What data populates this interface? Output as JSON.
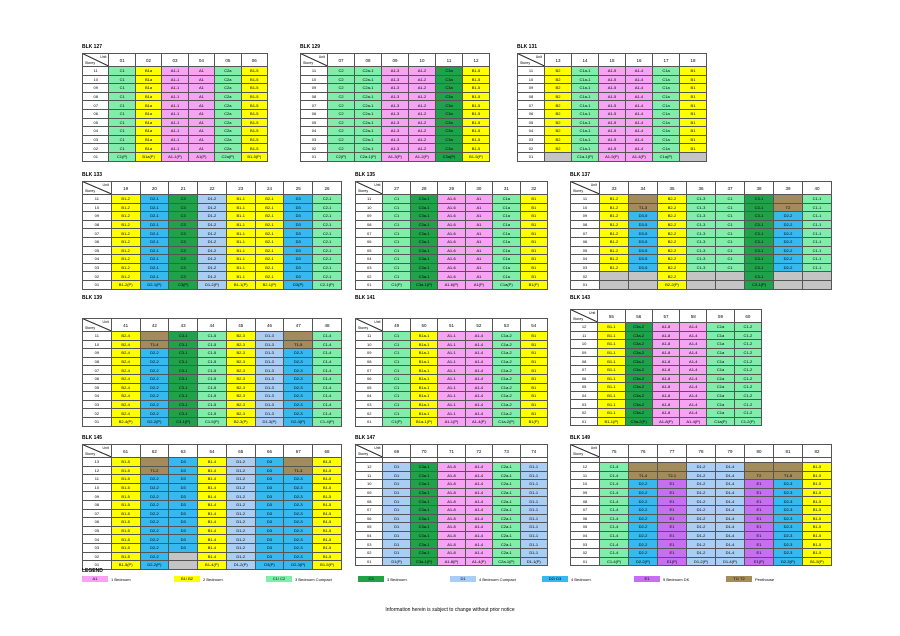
{
  "header_labels": {
    "unit": "Unit",
    "storey": "Storey"
  },
  "colors": {
    "a": "#f5a3f2",
    "b": "#ffff00",
    "c": "#80eeaa",
    "c3": "#1fa24a",
    "d1": "#a9cdf3",
    "d2": "#35b9ef",
    "e": "#c66ff0",
    "ph": "#a38b5b",
    "x": "#c4c4c4"
  },
  "blocks": [
    {
      "title": "BLK 127",
      "floors": [
        "11",
        "10",
        "09",
        "08",
        "07",
        "06",
        "05",
        "04",
        "03",
        "02",
        "01"
      ],
      "columns": [
        {
          "unit": "01",
          "type": "c",
          "label": "C1",
          "ground": "C1(P)"
        },
        {
          "unit": "02",
          "type": "b",
          "label": "B1a",
          "ground": "B1a(P)"
        },
        {
          "unit": "03",
          "type": "a",
          "label": "A1-1",
          "ground": "A1-1(P)"
        },
        {
          "unit": "04",
          "type": "a",
          "label": "A1",
          "ground": "A1(P)"
        },
        {
          "unit": "05",
          "type": "c",
          "label": "C2a",
          "ground": "C2a(P)"
        },
        {
          "unit": "06",
          "type": "b",
          "label": "B1-5",
          "ground": "B1-5(P)"
        }
      ]
    },
    {
      "title": "BLK 129",
      "floors": [
        "11",
        "10",
        "09",
        "08",
        "07",
        "06",
        "05",
        "04",
        "03",
        "02",
        "01"
      ],
      "columns": [
        {
          "unit": "07",
          "type": "c",
          "label": "C2",
          "ground": "C2(P)"
        },
        {
          "unit": "08",
          "type": "c",
          "label": "C2a-1",
          "ground": "C2a-1(P)"
        },
        {
          "unit": "09",
          "type": "a",
          "label": "A1-3",
          "ground": "A1-3(P)"
        },
        {
          "unit": "10",
          "type": "a",
          "label": "A1-2",
          "ground": "A1-2(P)"
        },
        {
          "unit": "11",
          "type": "c3",
          "label": "C3a",
          "ground": "C3a(P)"
        },
        {
          "unit": "12",
          "type": "b",
          "label": "B1-5",
          "ground": "B1-5(P)"
        }
      ]
    },
    {
      "title": "BLK 131",
      "floors": [
        "11",
        "10",
        "09",
        "08",
        "07",
        "06",
        "05",
        "04",
        "03",
        "02",
        "01"
      ],
      "columns": [
        {
          "unit": "13",
          "type": "b",
          "label": "B2",
          "gray_bottom": 1
        },
        {
          "unit": "14",
          "type": "c",
          "label": "C1a-1",
          "ground": "C1a-1(P)"
        },
        {
          "unit": "15",
          "type": "a",
          "label": "A1-5",
          "ground": "A1-5(P)"
        },
        {
          "unit": "16",
          "type": "a",
          "label": "A1-4",
          "ground": "A1-4(P)"
        },
        {
          "unit": "17",
          "type": "c",
          "label": "C1a",
          "ground": "C1a(P)"
        },
        {
          "unit": "18",
          "type": "b",
          "label": "B1",
          "gray_bottom": 1
        }
      ]
    },
    {
      "title": "BLK 133",
      "floors": [
        "11",
        "10",
        "09",
        "08",
        "07",
        "06",
        "05",
        "04",
        "03",
        "02",
        "01"
      ],
      "columns": [
        {
          "unit": "19",
          "type": "b",
          "label": "B1-2",
          "ground": "B1-2(P)"
        },
        {
          "unit": "20",
          "type": "d2",
          "label": "D2-1",
          "ground": "D2-1(P)"
        },
        {
          "unit": "21",
          "type": "c3",
          "label": "C3",
          "ground": "C3(P)"
        },
        {
          "unit": "22",
          "type": "d1",
          "label": "D1-2",
          "ground": "D1-2(P)"
        },
        {
          "unit": "23",
          "type": "b",
          "label": "B1-1",
          "ground": "B1-1(P)"
        },
        {
          "unit": "24",
          "type": "b",
          "label": "B2-1",
          "ground": "B2-1(P)"
        },
        {
          "unit": "25",
          "type": "d2",
          "label": "D3",
          "ground": "D3(P)"
        },
        {
          "unit": "26",
          "type": "c",
          "label": "C2-1",
          "ground": "C2-1(P)"
        }
      ]
    },
    {
      "title": "BLK 135",
      "floors": [
        "11",
        "10",
        "09",
        "08",
        "07",
        "06",
        "05",
        "04",
        "03",
        "02",
        "01"
      ],
      "columns": [
        {
          "unit": "27",
          "type": "c",
          "label": "C1",
          "ground": "C1(P)"
        },
        {
          "unit": "28",
          "type": "c3",
          "label": "C3a-1",
          "ground": "C3a-1(P)"
        },
        {
          "unit": "29",
          "type": "a",
          "label": "A1-6",
          "ground": "A1-6(P)"
        },
        {
          "unit": "30",
          "type": "a",
          "label": "A1",
          "ground": "A1(P)"
        },
        {
          "unit": "31",
          "type": "c",
          "label": "C1a",
          "ground": "C1a(P)"
        },
        {
          "unit": "32",
          "type": "b",
          "label": "B1",
          "ground": "B1(P)"
        }
      ]
    },
    {
      "title": "BLK 137",
      "floors": [
        "11",
        "10",
        "09",
        "08",
        "07",
        "06",
        "05",
        "04",
        "03",
        "02",
        "01"
      ],
      "columns": [
        {
          "unit": "33",
          "type": "b",
          "label": "B1-2",
          "gray_bottom": 2
        },
        {
          "unit": "34",
          "type": "d2",
          "label": "D3-5",
          "gray_bottom": 2,
          "top": [
            {
              "label": "",
              "type": "ph"
            },
            {
              "label": "T1-3",
              "type": "ph"
            }
          ]
        },
        {
          "unit": "35",
          "type": "b",
          "label": "B2-2",
          "ground": "B2-2(P)"
        },
        {
          "unit": "36",
          "type": "c",
          "label": "C1-3",
          "gray_bottom": 2
        },
        {
          "unit": "37",
          "type": "c",
          "label": "C1",
          "gray_bottom": 2
        },
        {
          "unit": "38",
          "type": "c3",
          "label": "C3-1",
          "ground": "C3-1(P)"
        },
        {
          "unit": "39",
          "type": "d2",
          "label": "D2-2",
          "gray_bottom": 2,
          "top": [
            {
              "label": "",
              "type": "ph"
            },
            {
              "label": "T2",
              "type": "ph"
            }
          ]
        },
        {
          "unit": "40",
          "type": "c",
          "label": "C1-1",
          "gray_bottom": 2
        }
      ]
    },
    {
      "title": "BLK 139",
      "floors": [
        "11",
        "10",
        "09",
        "08",
        "07",
        "06",
        "05",
        "04",
        "03",
        "02",
        "01"
      ],
      "columns": [
        {
          "unit": "41",
          "type": "b",
          "label": "B2-4",
          "ground": "B2-4(P)"
        },
        {
          "unit": "42",
          "type": "d2",
          "label": "D2-2",
          "ground": "D2-2(P)",
          "top": [
            {
              "label": "",
              "type": "ph"
            },
            {
              "label": "T1-4",
              "type": "ph"
            }
          ]
        },
        {
          "unit": "43",
          "type": "c3",
          "label": "C3-1",
          "ground": "C3-1(P)"
        },
        {
          "unit": "44",
          "type": "c",
          "label": "C1-5",
          "ground": "C1-5(P)"
        },
        {
          "unit": "45",
          "type": "b",
          "label": "B2-3",
          "ground": "B2-3(P)"
        },
        {
          "unit": "46",
          "type": "d1",
          "label": "D1-3",
          "ground": "D1-3(P)"
        },
        {
          "unit": "47",
          "type": "d2",
          "label": "D2-3",
          "ground": "D2-3(P)",
          "top": [
            {
              "label": "",
              "type": "ph"
            },
            {
              "label": "T1-5",
              "type": "ph"
            }
          ]
        },
        {
          "unit": "48",
          "type": "c",
          "label": "C1-4",
          "ground": "C1-4(P)"
        }
      ]
    },
    {
      "title": "BLK 141",
      "floors": [
        "11",
        "10",
        "09",
        "08",
        "07",
        "06",
        "05",
        "04",
        "03",
        "02",
        "01"
      ],
      "columns": [
        {
          "unit": "49",
          "type": "c",
          "label": "C1",
          "ground": "C1(P)"
        },
        {
          "unit": "50",
          "type": "b",
          "label": "B1a-1",
          "ground": "B1a-1(P)"
        },
        {
          "unit": "51",
          "type": "a",
          "label": "A1-1",
          "ground": "A1-1(P)"
        },
        {
          "unit": "52",
          "type": "a",
          "label": "A1-4",
          "ground": "A1-4(P)"
        },
        {
          "unit": "53",
          "type": "c",
          "label": "C1a-2",
          "ground": "C1a-2(P)"
        },
        {
          "unit": "54",
          "type": "b",
          "label": "B1",
          "ground": "B1(P)"
        }
      ]
    },
    {
      "title": "BLK 143",
      "floors": [
        "12",
        "11",
        "10",
        "09",
        "08",
        "07",
        "06",
        "05",
        "04",
        "03",
        "02",
        "01"
      ],
      "columns": [
        {
          "unit": "55",
          "type": "b",
          "label": "B1-1",
          "ground": "B1-1(P)"
        },
        {
          "unit": "56",
          "type": "c3",
          "label": "C3a-2",
          "ground": "C3a-2(P)"
        },
        {
          "unit": "57",
          "type": "a",
          "label": "A1-8",
          "ground": "A1-8(P)"
        },
        {
          "unit": "58",
          "type": "a",
          "label": "A1-4",
          "ground": "A1-4(P)"
        },
        {
          "unit": "59",
          "type": "c",
          "label": "C1a",
          "ground": "C1a(P)"
        },
        {
          "unit": "60",
          "type": "c",
          "label": "C1-2",
          "ground": "C1-2(P)"
        }
      ]
    },
    {
      "title": "BLK 145",
      "floors": [
        "13",
        "12",
        "11",
        "10",
        "09",
        "08",
        "07",
        "06",
        "05",
        "04",
        "03",
        "02",
        "01"
      ],
      "columns": [
        {
          "unit": "61",
          "type": "b",
          "label": "B1-5",
          "ground": "B1-5(P)"
        },
        {
          "unit": "62",
          "type": "d2",
          "label": "D2-2",
          "ground": "D2-2(P)",
          "top": [
            {
              "label": "",
              "type": "ph"
            },
            {
              "label": "T1-2",
              "type": "ph"
            }
          ]
        },
        {
          "unit": "63",
          "type": "d2",
          "label": "D3",
          "gray_bottom": 2
        },
        {
          "unit": "64",
          "type": "b",
          "label": "B1-4",
          "ground": "B1-4(P)"
        },
        {
          "unit": "65",
          "type": "d1",
          "label": "D1-2",
          "ground": "D1-2(P)"
        },
        {
          "unit": "66",
          "type": "d2",
          "label": "D3",
          "ground": "D3(P)"
        },
        {
          "unit": "67",
          "type": "d2",
          "label": "D2-3",
          "ground": "D2-3(P)",
          "top": [
            {
              "label": "",
              "type": "ph"
            },
            {
              "label": "T1-3",
              "type": "ph"
            }
          ]
        },
        {
          "unit": "68",
          "type": "b",
          "label": "B1-5",
          "ground": "B1-5(P)"
        }
      ]
    },
    {
      "title": "BLK 147",
      "blank_row": true,
      "floors": [
        "12",
        "11",
        "10",
        "09",
        "08",
        "07",
        "06",
        "05",
        "04",
        "03",
        "02",
        "01"
      ],
      "columns": [
        {
          "unit": "69",
          "type": "d1",
          "label": "D1",
          "ground": "D1(P)"
        },
        {
          "unit": "70",
          "type": "c3",
          "label": "C3a-1",
          "ground": "C3a-1(P)"
        },
        {
          "unit": "71",
          "type": "a",
          "label": "A1-8",
          "ground": "A1-8(P)"
        },
        {
          "unit": "72",
          "type": "a",
          "label": "A1-4",
          "ground": "A1-4(P)"
        },
        {
          "unit": "73",
          "type": "c",
          "label": "C2a-1",
          "ground": "C2a-1(P)"
        },
        {
          "unit": "74",
          "type": "d1",
          "label": "D1-1",
          "ground": "D1-1(P)"
        }
      ]
    },
    {
      "title": "BLK 149",
      "blank_row": true,
      "floors": [
        "12",
        "11",
        "10",
        "09",
        "08",
        "07",
        "06",
        "05",
        "04",
        "03",
        "02",
        "01"
      ],
      "columns": [
        {
          "unit": "75",
          "type": "c",
          "label": "C1-4",
          "ground": "C1-4(P)"
        },
        {
          "unit": "76",
          "type": "d2",
          "label": "D2-2",
          "ground": "D2-2(P)",
          "top": [
            {
              "label": "",
              "type": "ph"
            },
            {
              "label": "T1-4",
              "type": "ph"
            }
          ]
        },
        {
          "unit": "77",
          "type": "e",
          "label": "E1",
          "ground": "E1(P)",
          "top": [
            {
              "label": "",
              "type": "ph"
            },
            {
              "label": "T2-1",
              "type": "ph"
            }
          ]
        },
        {
          "unit": "78",
          "type": "d1",
          "label": "D1-2",
          "ground": "D1-2(P)"
        },
        {
          "unit": "79",
          "type": "d1",
          "label": "D1-4",
          "ground": "D1-4(P)"
        },
        {
          "unit": "80",
          "type": "e",
          "label": "E1",
          "ground": "E1(P)",
          "top": [
            {
              "label": "",
              "type": "ph"
            },
            {
              "label": "T2",
              "type": "ph"
            }
          ]
        },
        {
          "unit": "81",
          "type": "d2",
          "label": "D2-3",
          "ground": "D2-3(P)",
          "top": [
            {
              "label": "",
              "type": "ph"
            },
            {
              "label": "T1-5",
              "type": "ph"
            }
          ]
        },
        {
          "unit": "82",
          "type": "b",
          "label": "B1-5",
          "ground": "B1-5(P)"
        }
      ]
    }
  ],
  "legend": {
    "title": "LEGEND",
    "items": [
      {
        "code": "A1",
        "type": "a",
        "label": "1 Bedroom"
      },
      {
        "code": "B1/ B2",
        "type": "b",
        "label": "2 Bedroom"
      },
      {
        "code": "C1/ C2",
        "type": "c",
        "label": "3 Bedroom Compact"
      },
      {
        "code": "C3",
        "type": "c3",
        "label": "3 Bedroom"
      },
      {
        "code": "D1",
        "type": "d1",
        "label": "4 Bedroom Compact"
      },
      {
        "code": "D2/ D3",
        "type": "d2",
        "label": "4 Bedroom"
      },
      {
        "code": "E1",
        "type": "e",
        "label": "5 Bedroom DK"
      },
      {
        "code": "T1/ T2",
        "type": "ph",
        "label": "Penthouse"
      }
    ]
  },
  "footer": "Information herein is subject to change without prior notice"
}
